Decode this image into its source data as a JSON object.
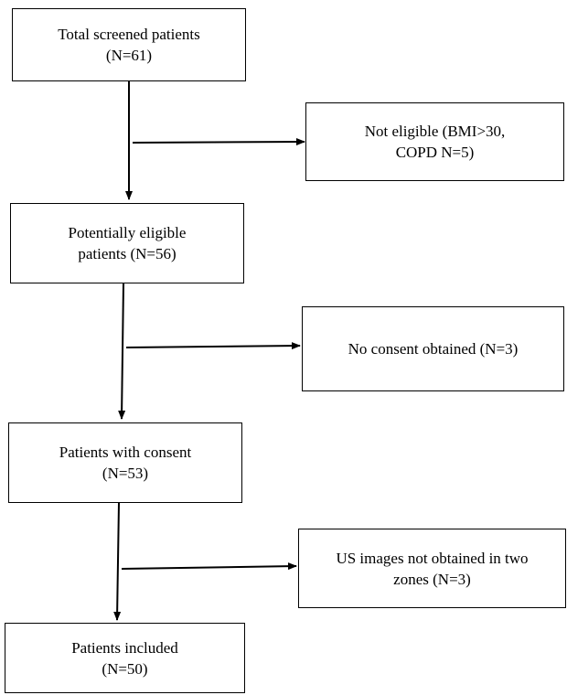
{
  "flowchart": {
    "screened": {
      "line1": "Total screened patients",
      "line2": "(N=61)"
    },
    "not_eligible": {
      "line1": "Not eligible (BMI>30,",
      "line2": "COPD N=5)"
    },
    "potentially_eligible": {
      "line1": "Potentially eligible",
      "line2": "patients (N=56)"
    },
    "no_consent": {
      "line1": "No consent obtained (N=3)"
    },
    "with_consent": {
      "line1": "Patients with consent",
      "line2": "(N=53)"
    },
    "us_not_obtained": {
      "line1": "US images not obtained in two",
      "line2": "zones (N=3)"
    },
    "included": {
      "line1": "Patients included",
      "line2": "(N=50)"
    }
  }
}
